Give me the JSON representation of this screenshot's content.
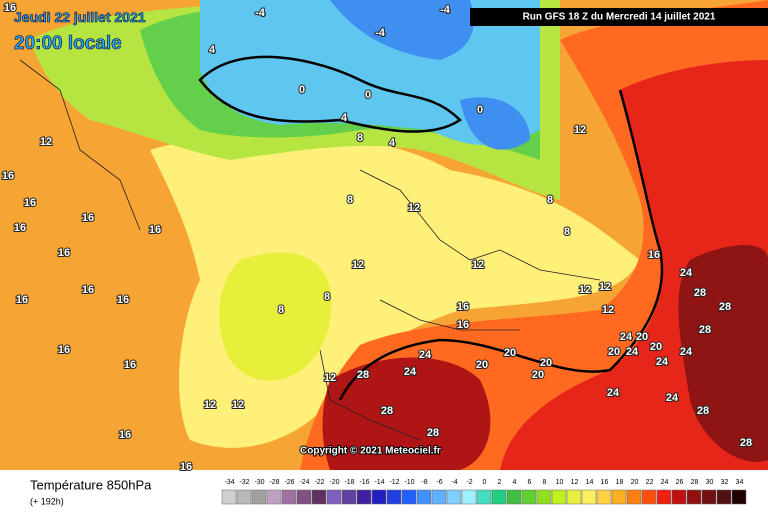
{
  "header": {
    "date": "Jeudi 22 juillet 2021",
    "time": "20:00 locale",
    "run": "Run GFS 18 Z du Mercredi 14 juillet 2021"
  },
  "copyright": "Copyright © 2021 Meteociel.fr",
  "footer": {
    "title": "Température 850hPa",
    "lead": "(+ 192h)"
  },
  "legend": {
    "values": [
      -34,
      -32,
      -30,
      -28,
      -26,
      -24,
      -22,
      -20,
      -18,
      -16,
      -14,
      -12,
      -10,
      -8,
      -6,
      -4,
      -2,
      0,
      2,
      4,
      6,
      8,
      10,
      12,
      14,
      16,
      18,
      20,
      22,
      24,
      26,
      28,
      30,
      32,
      34
    ],
    "colors": [
      "#d0d0d0",
      "#b8b8b8",
      "#a0a0a0",
      "#c0a0c0",
      "#a070a0",
      "#805080",
      "#603060",
      "#8060c0",
      "#6040a0",
      "#4020a0",
      "#2020c0",
      "#2040e0",
      "#2060ff",
      "#4090ff",
      "#60b0ff",
      "#80d0ff",
      "#a0f0ff",
      "#40e0c0",
      "#20d080",
      "#40c040",
      "#60d030",
      "#90e020",
      "#c0f020",
      "#e8f040",
      "#fff060",
      "#ffd040",
      "#ffb020",
      "#ff8010",
      "#ff5010",
      "#f02010",
      "#c01010",
      "#901010",
      "#701010",
      "#501010",
      "#200000"
    ]
  },
  "map": {
    "contour_labels": [
      16,
      12,
      16,
      16,
      16,
      16,
      16,
      16,
      16,
      16,
      16,
      16,
      16,
      16,
      16,
      12,
      12,
      8,
      8,
      8,
      12,
      12,
      12,
      16,
      16,
      12,
      8,
      8,
      4,
      0,
      0,
      -4,
      -4,
      4,
      -4,
      0,
      4,
      8,
      16,
      24,
      28,
      28,
      28,
      24,
      20,
      20,
      24,
      20,
      24,
      24,
      24,
      28,
      28,
      20,
      20,
      24,
      24,
      28,
      28,
      28,
      12,
      20,
      20,
      12,
      12,
      24,
      12
    ]
  }
}
